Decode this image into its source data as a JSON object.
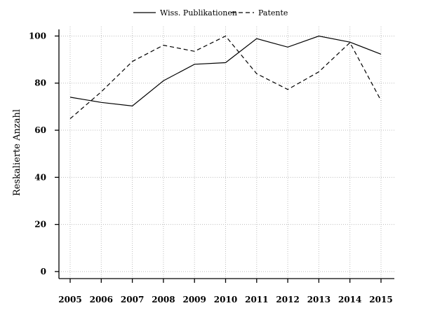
{
  "chart_data": {
    "type": "line",
    "title": "",
    "xlabel": "",
    "ylabel": "Reskalierte Anzahl",
    "x": [
      "2005",
      "2006",
      "2007",
      "2008",
      "2009",
      "2010",
      "2011",
      "2012",
      "2013",
      "2014",
      "2015"
    ],
    "ylim": [
      -3,
      104
    ],
    "yticks": [
      "0",
      "20",
      "40",
      "60",
      "80",
      "100"
    ],
    "grid": true,
    "legend_position": "top-center",
    "series": [
      {
        "name": "Wiss. Publikationen",
        "line_style": "solid",
        "values": [
          74,
          71.8,
          70.3,
          81,
          88,
          88.7,
          98.9,
          95.3,
          100,
          97.4,
          92.3
        ]
      },
      {
        "name": "Patente",
        "line_style": "dashed",
        "values": [
          64.9,
          76.3,
          89.2,
          96.1,
          93.5,
          100,
          84,
          77.3,
          84.8,
          97.2,
          72.6
        ]
      }
    ]
  }
}
